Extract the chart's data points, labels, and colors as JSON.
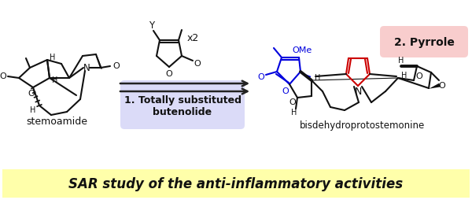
{
  "title": "SAR study of the anti-inflammatory activities",
  "title_fontsize": 12,
  "label_stemoamide": "stemoamide",
  "label_product": "bisdehydroprotostemonine",
  "label_box1_line1": "1. Totally substituted",
  "label_box1_line2": "butenolide",
  "label_box1_bg": "#d8d8f8",
  "label_box2": "2. Pyrrole",
  "label_box2_bg": "#f8c8c8",
  "label_x2": "x2",
  "label_OMe": "OMe",
  "label_Y": "Y",
  "arrow_color": "#222222",
  "blue_color": "#0000dd",
  "red_color": "#cc0000",
  "black_color": "#111111",
  "bg_color": "#ffffff",
  "title_bg": "#ffffaa"
}
